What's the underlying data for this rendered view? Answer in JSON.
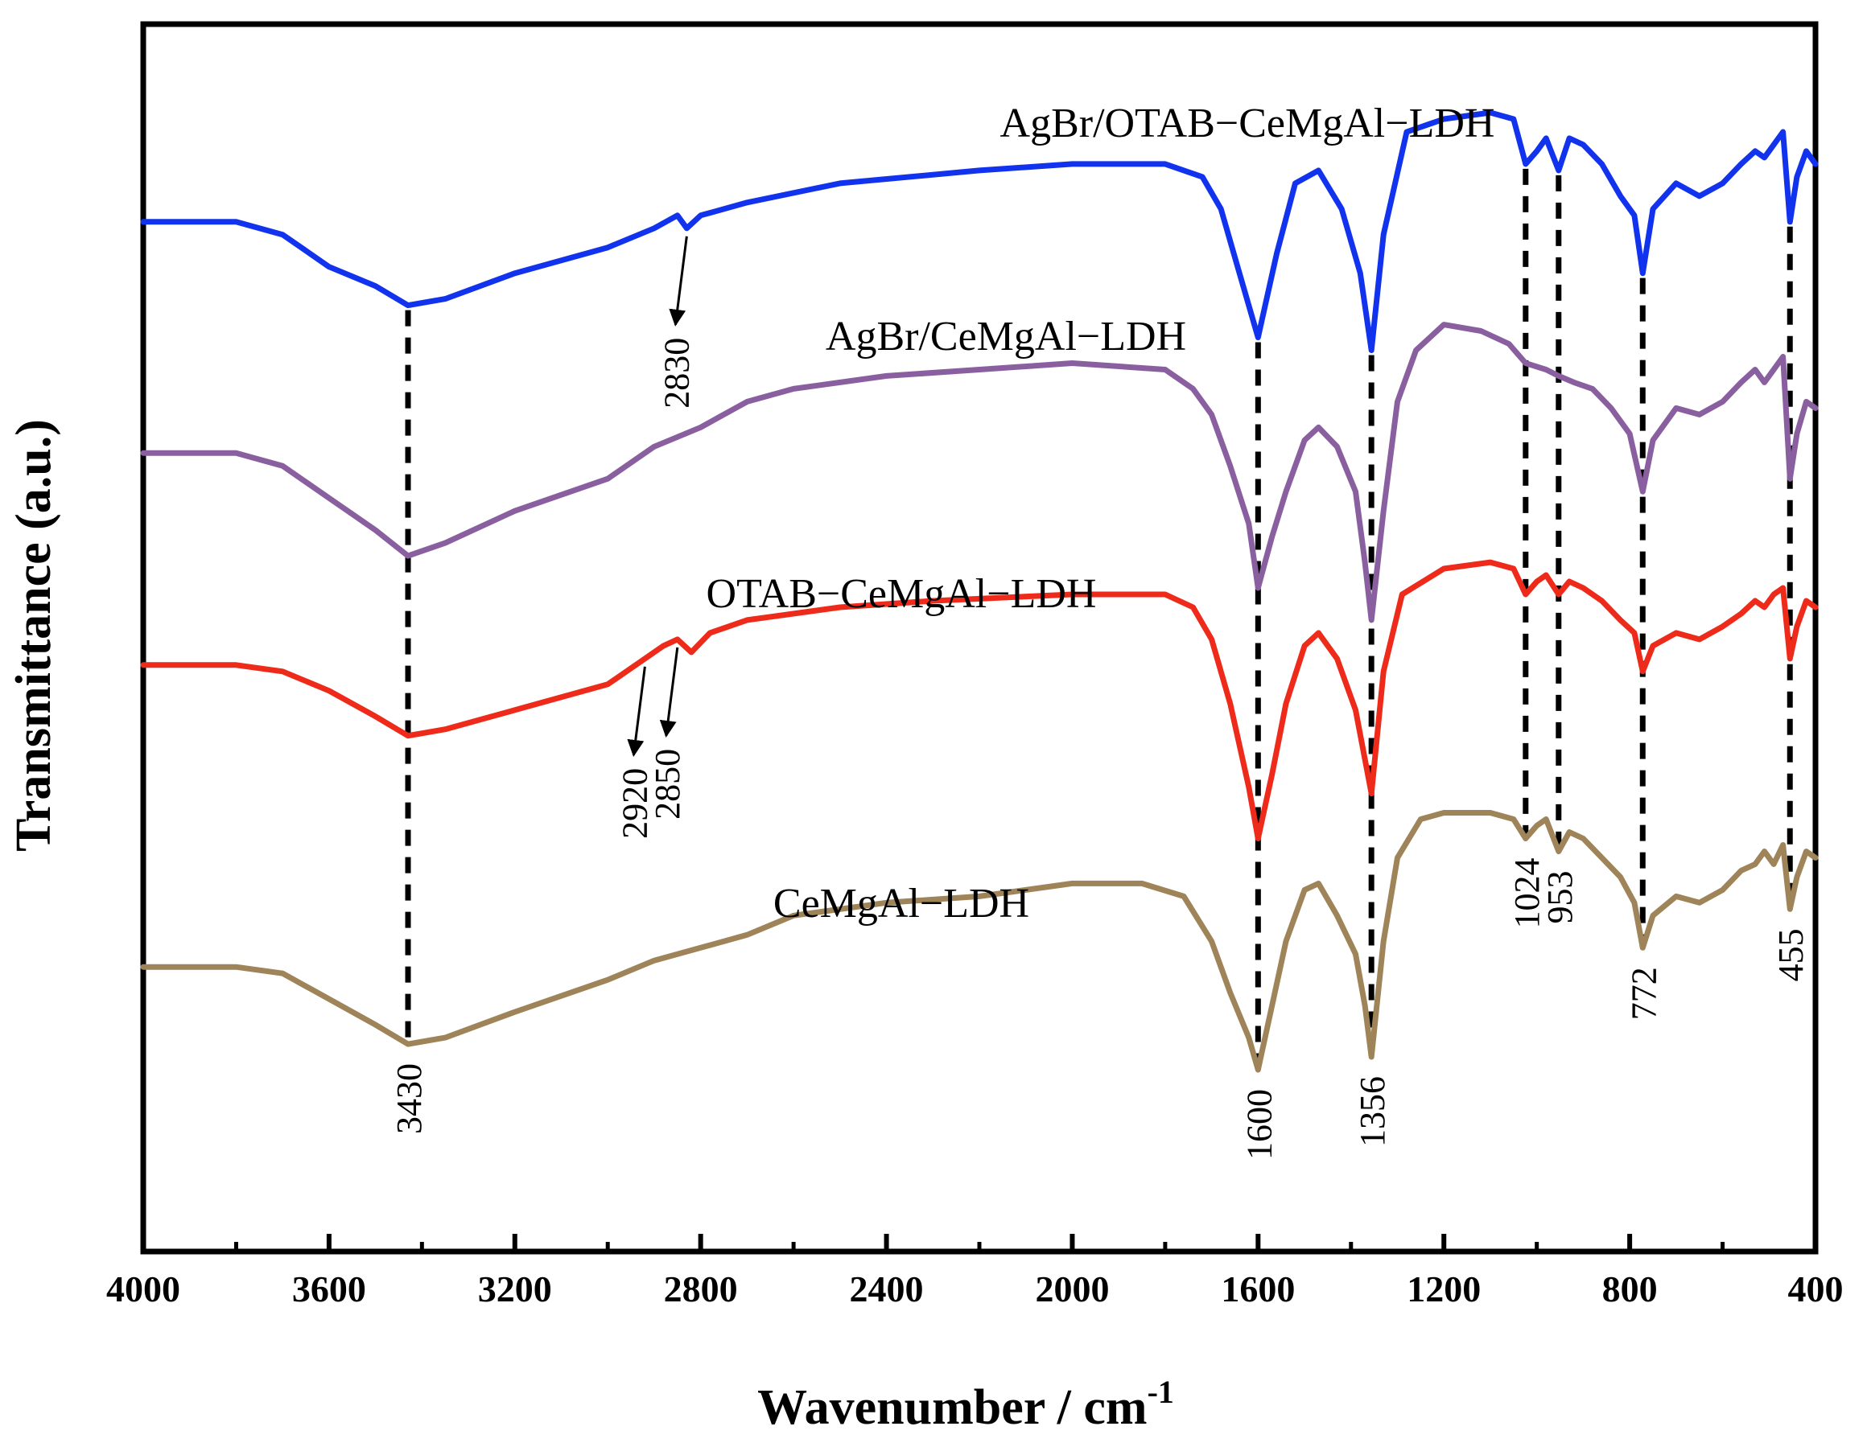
{
  "chart_data": {
    "type": "line",
    "xlabel": "Wavenumber / cm",
    "xlabel_sup": "-1",
    "ylabel": "Transmittance (a.u.)",
    "xlim": [
      4000,
      400
    ],
    "x_reversed": true,
    "grid": false,
    "x_ticks": [
      4000,
      3600,
      3200,
      2800,
      2400,
      2000,
      1600,
      1200,
      800,
      400
    ],
    "x_tick_labels": [
      "4000",
      "3600",
      "3200",
      "2800",
      "2400",
      "2000",
      "1600",
      "1200",
      "800",
      "400"
    ],
    "series": [
      {
        "name": "AgBr/OTAB−CeMgAl−LDH",
        "color": "#1133ee",
        "points": [
          [
            4000,
            0.8
          ],
          [
            3800,
            0.8
          ],
          [
            3700,
            0.78
          ],
          [
            3600,
            0.73
          ],
          [
            3500,
            0.7
          ],
          [
            3430,
            0.67
          ],
          [
            3350,
            0.68
          ],
          [
            3200,
            0.72
          ],
          [
            3000,
            0.76
          ],
          [
            2900,
            0.79
          ],
          [
            2850,
            0.81
          ],
          [
            2830,
            0.79
          ],
          [
            2800,
            0.81
          ],
          [
            2700,
            0.83
          ],
          [
            2500,
            0.86
          ],
          [
            2200,
            0.88
          ],
          [
            2000,
            0.89
          ],
          [
            1800,
            0.89
          ],
          [
            1720,
            0.87
          ],
          [
            1680,
            0.82
          ],
          [
            1640,
            0.72
          ],
          [
            1600,
            0.62
          ],
          [
            1560,
            0.75
          ],
          [
            1520,
            0.86
          ],
          [
            1470,
            0.88
          ],
          [
            1420,
            0.82
          ],
          [
            1380,
            0.72
          ],
          [
            1356,
            0.6
          ],
          [
            1330,
            0.78
          ],
          [
            1280,
            0.94
          ],
          [
            1200,
            0.96
          ],
          [
            1100,
            0.97
          ],
          [
            1050,
            0.96
          ],
          [
            1024,
            0.89
          ],
          [
            1000,
            0.91
          ],
          [
            980,
            0.93
          ],
          [
            953,
            0.88
          ],
          [
            930,
            0.93
          ],
          [
            900,
            0.92
          ],
          [
            860,
            0.89
          ],
          [
            820,
            0.84
          ],
          [
            790,
            0.81
          ],
          [
            772,
            0.72
          ],
          [
            750,
            0.82
          ],
          [
            700,
            0.86
          ],
          [
            650,
            0.84
          ],
          [
            600,
            0.86
          ],
          [
            560,
            0.89
          ],
          [
            530,
            0.91
          ],
          [
            510,
            0.9
          ],
          [
            490,
            0.92
          ],
          [
            470,
            0.94
          ],
          [
            455,
            0.8
          ],
          [
            440,
            0.87
          ],
          [
            420,
            0.91
          ],
          [
            400,
            0.89
          ]
        ]
      },
      {
        "name": "AgBr/CeMgAl−LDH",
        "color": "#8a5fa0",
        "points": [
          [
            4000,
            0.44
          ],
          [
            3800,
            0.44
          ],
          [
            3700,
            0.42
          ],
          [
            3600,
            0.37
          ],
          [
            3500,
            0.32
          ],
          [
            3430,
            0.28
          ],
          [
            3350,
            0.3
          ],
          [
            3200,
            0.35
          ],
          [
            3000,
            0.4
          ],
          [
            2900,
            0.45
          ],
          [
            2800,
            0.48
          ],
          [
            2700,
            0.52
          ],
          [
            2600,
            0.54
          ],
          [
            2400,
            0.56
          ],
          [
            2200,
            0.57
          ],
          [
            2000,
            0.58
          ],
          [
            1800,
            0.57
          ],
          [
            1740,
            0.54
          ],
          [
            1700,
            0.5
          ],
          [
            1660,
            0.42
          ],
          [
            1620,
            0.33
          ],
          [
            1600,
            0.23
          ],
          [
            1570,
            0.31
          ],
          [
            1540,
            0.38
          ],
          [
            1500,
            0.46
          ],
          [
            1470,
            0.48
          ],
          [
            1430,
            0.45
          ],
          [
            1390,
            0.38
          ],
          [
            1370,
            0.27
          ],
          [
            1356,
            0.18
          ],
          [
            1330,
            0.35
          ],
          [
            1300,
            0.52
          ],
          [
            1260,
            0.6
          ],
          [
            1200,
            0.64
          ],
          [
            1120,
            0.63
          ],
          [
            1060,
            0.61
          ],
          [
            1024,
            0.58
          ],
          [
            980,
            0.57
          ],
          [
            953,
            0.56
          ],
          [
            920,
            0.55
          ],
          [
            880,
            0.54
          ],
          [
            840,
            0.51
          ],
          [
            800,
            0.47
          ],
          [
            772,
            0.38
          ],
          [
            750,
            0.46
          ],
          [
            700,
            0.51
          ],
          [
            650,
            0.5
          ],
          [
            600,
            0.52
          ],
          [
            560,
            0.55
          ],
          [
            530,
            0.57
          ],
          [
            510,
            0.55
          ],
          [
            490,
            0.57
          ],
          [
            470,
            0.59
          ],
          [
            455,
            0.4
          ],
          [
            440,
            0.47
          ],
          [
            420,
            0.52
          ],
          [
            400,
            0.51
          ]
        ]
      },
      {
        "name": "OTAB−CeMgAl−LDH",
        "color": "#ee2a1a",
        "points": [
          [
            4000,
            0.11
          ],
          [
            3800,
            0.11
          ],
          [
            3700,
            0.1
          ],
          [
            3600,
            0.07
          ],
          [
            3500,
            0.03
          ],
          [
            3430,
            0.0
          ],
          [
            3350,
            0.01
          ],
          [
            3200,
            0.04
          ],
          [
            3000,
            0.08
          ],
          [
            2920,
            0.12
          ],
          [
            2880,
            0.14
          ],
          [
            2850,
            0.15
          ],
          [
            2820,
            0.13
          ],
          [
            2780,
            0.16
          ],
          [
            2700,
            0.18
          ],
          [
            2500,
            0.2
          ],
          [
            2300,
            0.21
          ],
          [
            2000,
            0.22
          ],
          [
            1800,
            0.22
          ],
          [
            1740,
            0.2
          ],
          [
            1700,
            0.15
          ],
          [
            1660,
            0.05
          ],
          [
            1620,
            -0.08
          ],
          [
            1600,
            -0.16
          ],
          [
            1570,
            -0.06
          ],
          [
            1540,
            0.05
          ],
          [
            1500,
            0.14
          ],
          [
            1470,
            0.16
          ],
          [
            1430,
            0.12
          ],
          [
            1390,
            0.04
          ],
          [
            1356,
            -0.09
          ],
          [
            1330,
            0.1
          ],
          [
            1290,
            0.22
          ],
          [
            1200,
            0.26
          ],
          [
            1100,
            0.27
          ],
          [
            1050,
            0.26
          ],
          [
            1024,
            0.22
          ],
          [
            1000,
            0.24
          ],
          [
            980,
            0.25
          ],
          [
            953,
            0.22
          ],
          [
            930,
            0.24
          ],
          [
            900,
            0.23
          ],
          [
            860,
            0.21
          ],
          [
            820,
            0.18
          ],
          [
            790,
            0.16
          ],
          [
            772,
            0.1
          ],
          [
            750,
            0.14
          ],
          [
            700,
            0.16
          ],
          [
            650,
            0.15
          ],
          [
            600,
            0.17
          ],
          [
            560,
            0.19
          ],
          [
            530,
            0.21
          ],
          [
            510,
            0.2
          ],
          [
            490,
            0.22
          ],
          [
            470,
            0.23
          ],
          [
            455,
            0.12
          ],
          [
            440,
            0.17
          ],
          [
            420,
            0.21
          ],
          [
            400,
            0.2
          ]
        ]
      },
      {
        "name": "CeMgAl−LDH",
        "color": "#9e8458",
        "points": [
          [
            4000,
            -0.36
          ],
          [
            3800,
            -0.36
          ],
          [
            3700,
            -0.37
          ],
          [
            3600,
            -0.41
          ],
          [
            3500,
            -0.45
          ],
          [
            3430,
            -0.48
          ],
          [
            3350,
            -0.47
          ],
          [
            3200,
            -0.43
          ],
          [
            3000,
            -0.38
          ],
          [
            2900,
            -0.35
          ],
          [
            2800,
            -0.33
          ],
          [
            2700,
            -0.31
          ],
          [
            2600,
            -0.28
          ],
          [
            2400,
            -0.26
          ],
          [
            2200,
            -0.25
          ],
          [
            2000,
            -0.23
          ],
          [
            1850,
            -0.23
          ],
          [
            1760,
            -0.25
          ],
          [
            1700,
            -0.32
          ],
          [
            1660,
            -0.4
          ],
          [
            1620,
            -0.47
          ],
          [
            1600,
            -0.52
          ],
          [
            1570,
            -0.42
          ],
          [
            1540,
            -0.32
          ],
          [
            1500,
            -0.24
          ],
          [
            1470,
            -0.23
          ],
          [
            1430,
            -0.28
          ],
          [
            1390,
            -0.34
          ],
          [
            1370,
            -0.42
          ],
          [
            1356,
            -0.5
          ],
          [
            1330,
            -0.32
          ],
          [
            1300,
            -0.19
          ],
          [
            1250,
            -0.13
          ],
          [
            1200,
            -0.12
          ],
          [
            1100,
            -0.12
          ],
          [
            1050,
            -0.13
          ],
          [
            1024,
            -0.16
          ],
          [
            1000,
            -0.14
          ],
          [
            980,
            -0.13
          ],
          [
            953,
            -0.18
          ],
          [
            930,
            -0.15
          ],
          [
            900,
            -0.16
          ],
          [
            860,
            -0.19
          ],
          [
            820,
            -0.22
          ],
          [
            790,
            -0.26
          ],
          [
            772,
            -0.33
          ],
          [
            750,
            -0.28
          ],
          [
            700,
            -0.25
          ],
          [
            650,
            -0.26
          ],
          [
            600,
            -0.24
          ],
          [
            560,
            -0.21
          ],
          [
            530,
            -0.2
          ],
          [
            510,
            -0.18
          ],
          [
            490,
            -0.2
          ],
          [
            470,
            -0.17
          ],
          [
            455,
            -0.27
          ],
          [
            440,
            -0.22
          ],
          [
            420,
            -0.18
          ],
          [
            400,
            -0.19
          ]
        ]
      }
    ],
    "peak_lines": [
      3430,
      1600,
      1356,
      1024,
      953,
      772,
      455
    ],
    "peak_labels": [
      {
        "text": "3430",
        "x": 3430
      },
      {
        "text": "1600",
        "x": 1600
      },
      {
        "text": "1356",
        "x": 1356
      },
      {
        "text": "1024",
        "x": 1024
      },
      {
        "text": "953",
        "x": 953
      },
      {
        "text": "772",
        "x": 772
      },
      {
        "text": "455",
        "x": 455
      }
    ],
    "arrow_annotations": [
      {
        "text": "2830",
        "x": 2830,
        "series": 0
      },
      {
        "text": "2920",
        "x": 2920,
        "series": 2
      },
      {
        "text": "2850",
        "x": 2850,
        "series": 2
      }
    ]
  }
}
